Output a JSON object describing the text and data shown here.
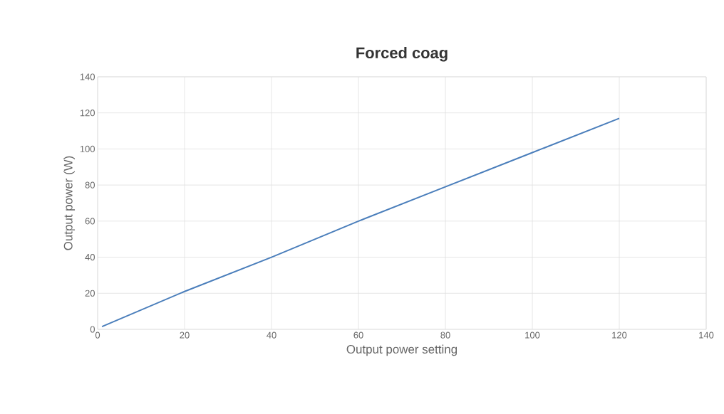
{
  "chart_data": {
    "type": "line",
    "title": "Forced coag",
    "xlabel": "Output power setting",
    "ylabel": "Output power (W)",
    "x": [
      1,
      20,
      40,
      60,
      80,
      100,
      120
    ],
    "series": [
      {
        "color": "#4a7ebb",
        "values": [
          1.5,
          21,
          40,
          60,
          79,
          98,
          117
        ]
      }
    ],
    "xlim": [
      0,
      140
    ],
    "ylim": [
      0,
      140
    ],
    "xticks": [
      0,
      20,
      40,
      60,
      80,
      100,
      120,
      140
    ],
    "yticks": [
      0,
      20,
      40,
      60,
      80,
      100,
      120,
      140
    ],
    "grid": true,
    "marker": "none",
    "line_style": "solid"
  }
}
